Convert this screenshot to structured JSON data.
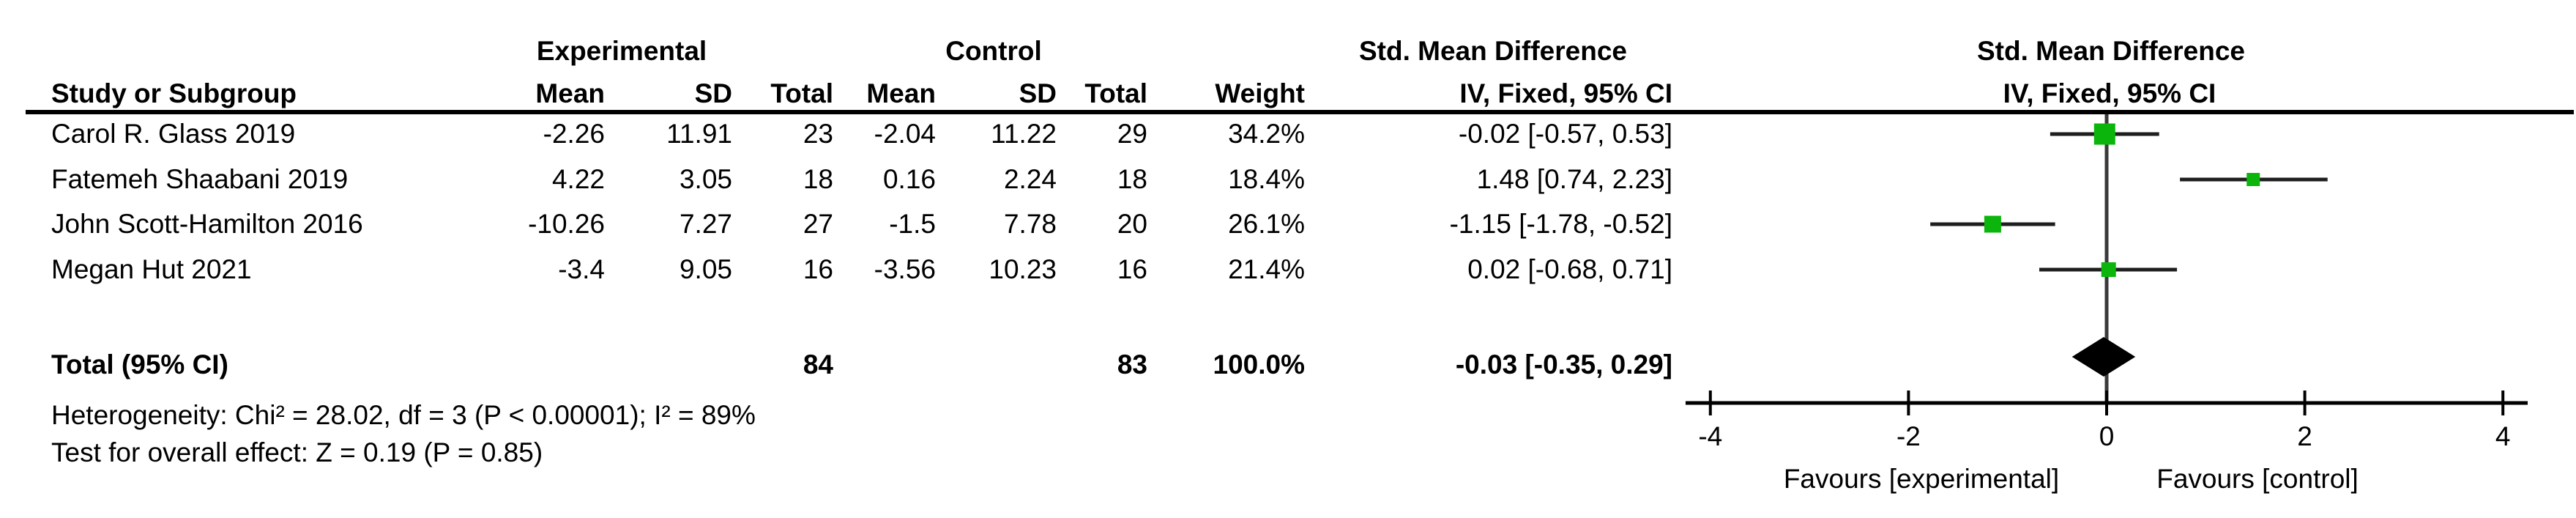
{
  "table": {
    "group_headers": {
      "experimental": "Experimental",
      "control": "Control",
      "smd_text_col": "Std. Mean Difference",
      "smd_plot_col": "Std. Mean Difference"
    },
    "col_headers": {
      "study": "Study or Subgroup",
      "mean_exp": "Mean",
      "sd_exp": "SD",
      "total_exp": "Total",
      "mean_ctrl": "Mean",
      "sd_ctrl": "SD",
      "total_ctrl": "Total",
      "weight": "Weight",
      "ci_text": "IV, Fixed, 95% CI",
      "ci_plot": "IV, Fixed, 95% CI"
    },
    "rows": [
      {
        "study": "Carol R. Glass 2019",
        "mean_exp": "-2.26",
        "sd_exp": "11.91",
        "total_exp": "23",
        "mean_ctrl": "-2.04",
        "sd_ctrl": "11.22",
        "total_ctrl": "29",
        "weight": "34.2%",
        "ci": "-0.02 [-0.57, 0.53]"
      },
      {
        "study": "Fatemeh Shaabani 2019",
        "mean_exp": "4.22",
        "sd_exp": "3.05",
        "total_exp": "18",
        "mean_ctrl": "0.16",
        "sd_ctrl": "2.24",
        "total_ctrl": "18",
        "weight": "18.4%",
        "ci": "1.48 [0.74, 2.23]"
      },
      {
        "study": "John Scott-Hamilton 2016",
        "mean_exp": "-10.26",
        "sd_exp": "7.27",
        "total_exp": "27",
        "mean_ctrl": "-1.5",
        "sd_ctrl": "7.78",
        "total_ctrl": "20",
        "weight": "26.1%",
        "ci": "-1.15 [-1.78, -0.52]"
      },
      {
        "study": "Megan Hut 2021",
        "mean_exp": "-3.4",
        "sd_exp": "9.05",
        "total_exp": "16",
        "mean_ctrl": "-3.56",
        "sd_ctrl": "10.23",
        "total_ctrl": "16",
        "weight": "21.4%",
        "ci": "0.02 [-0.68, 0.71]"
      }
    ],
    "total_row": {
      "label": "Total (95% CI)",
      "total_exp": "84",
      "total_ctrl": "83",
      "weight": "100.0%",
      "ci": "-0.03 [-0.35, 0.29]"
    },
    "heterogeneity": "Heterogeneity: Chi² = 28.02, df = 3 (P < 0.00001); I² = 89%",
    "overall_effect": "Test for overall effect: Z = 0.19 (P = 0.85)"
  },
  "chart_data": {
    "type": "forest",
    "effect_measure": "Std. Mean Difference",
    "model": "IV, Fixed, 95% CI",
    "x_ticks": [
      -4,
      -2,
      0,
      2,
      4
    ],
    "xlim": [
      -4.25,
      4.25
    ],
    "studies": [
      {
        "name": "Carol R. Glass 2019",
        "smd": -0.02,
        "ci_low": -0.57,
        "ci_high": 0.53,
        "weight": 34.2
      },
      {
        "name": "Fatemeh Shaabani 2019",
        "smd": 1.48,
        "ci_low": 0.74,
        "ci_high": 2.23,
        "weight": 18.4
      },
      {
        "name": "John Scott-Hamilton 2016",
        "smd": -1.15,
        "ci_low": -1.78,
        "ci_high": -0.52,
        "weight": 26.1
      },
      {
        "name": "Megan Hut 2021",
        "smd": 0.02,
        "ci_low": -0.68,
        "ci_high": 0.71,
        "weight": 21.4
      }
    ],
    "total": {
      "label": "Total (95% CI)",
      "smd": -0.03,
      "ci_low": -0.35,
      "ci_high": 0.29,
      "weight": 100.0
    },
    "favours_left": "Favours [experimental]",
    "favours_right": "Favours [control]",
    "marker_color": "#0cb50c",
    "diamond_color": "#000000",
    "ci_line_color": "#1e1e1e",
    "zero_line_color": "#3a3a3a",
    "axis_color": "#000000"
  }
}
